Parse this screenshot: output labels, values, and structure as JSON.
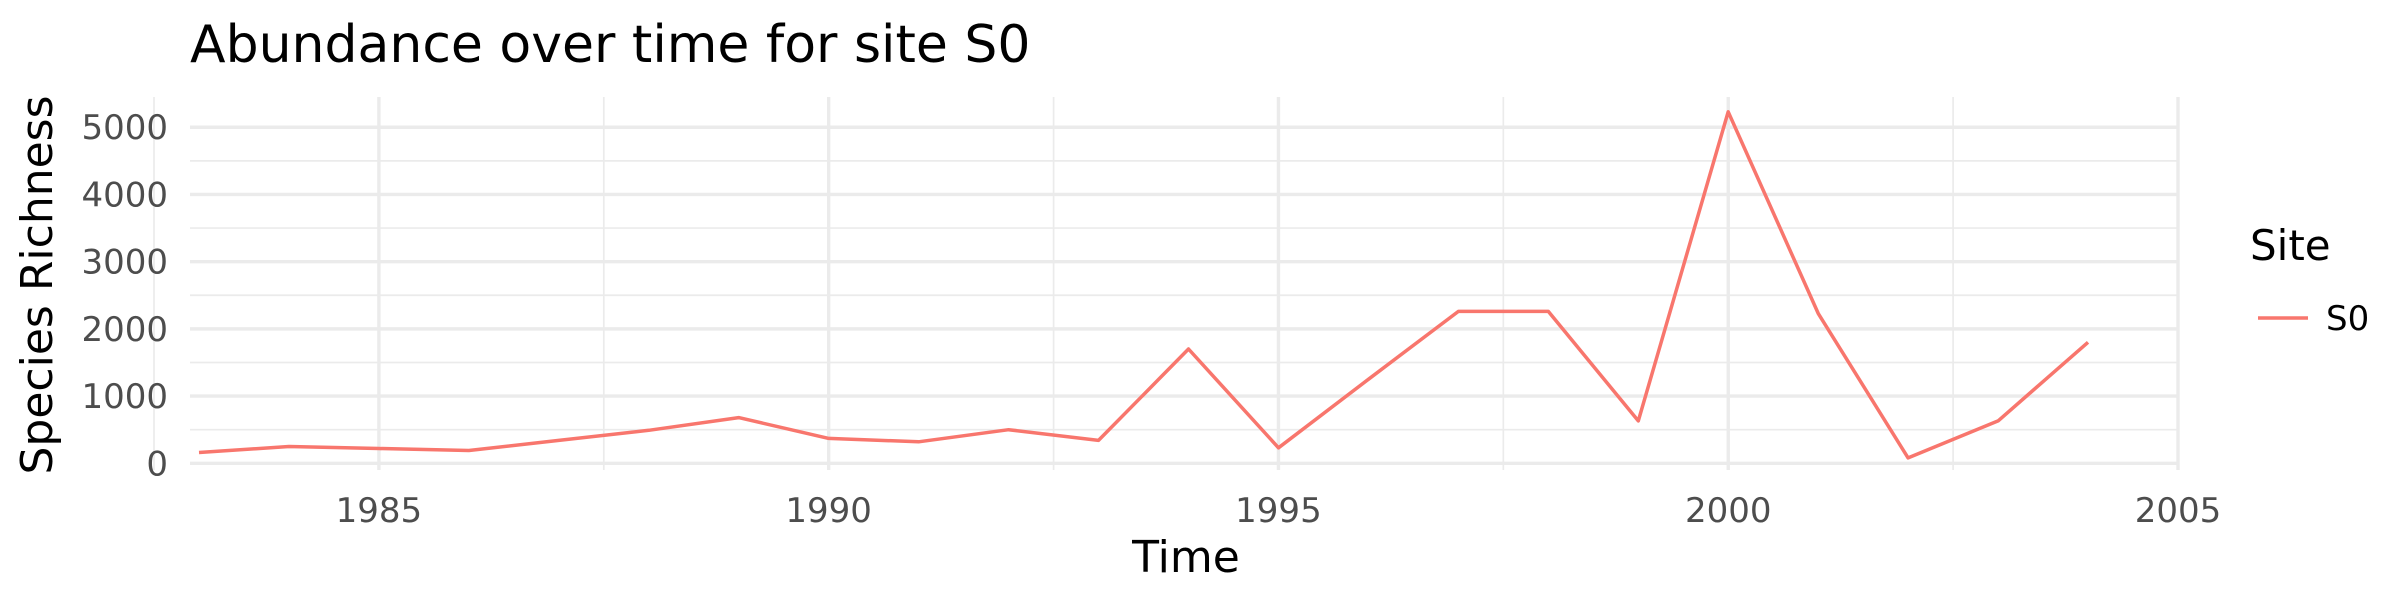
{
  "chart_data": {
    "type": "line",
    "title": "Abundance over time for site S0",
    "xlabel": "Time",
    "ylabel": "Species Richness",
    "xlim": [
      1982.9,
      2005.0
    ],
    "ylim": [
      -100,
      5450
    ],
    "x_ticks": [
      1985,
      1990,
      1995,
      2000,
      2005
    ],
    "y_ticks": [
      0,
      1000,
      2000,
      3000,
      4000,
      5000
    ],
    "grid": true,
    "legend": {
      "title": "Site",
      "placement": "right"
    },
    "series": [
      {
        "name": "S0",
        "color": "#f8766d",
        "x": [
          1983,
          1984,
          1985,
          1986,
          1987,
          1988,
          1989,
          1990,
          1991,
          1992,
          1993,
          1994,
          1995,
          1996,
          1997,
          1998,
          1999,
          2000,
          2001,
          2002,
          2003,
          2004
        ],
        "values": [
          160,
          250,
          220,
          190,
          340,
          490,
          680,
          370,
          320,
          500,
          340,
          1700,
          230,
          1250,
          2260,
          2260,
          630,
          5230,
          2230,
          80,
          630,
          1800
        ]
      }
    ]
  }
}
